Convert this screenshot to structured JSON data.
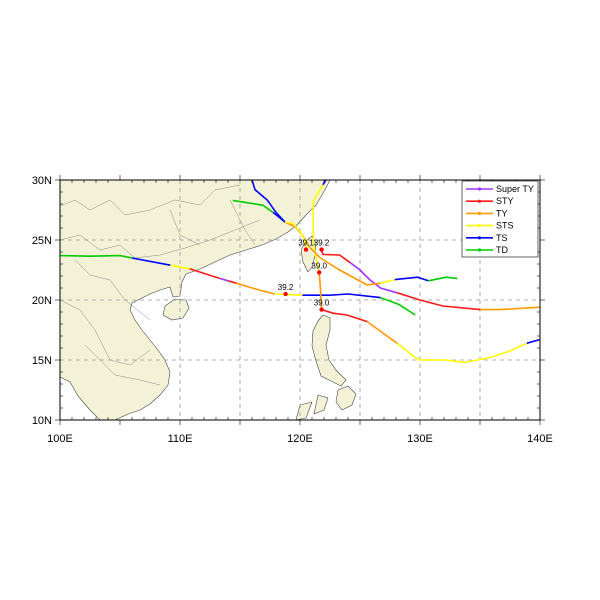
{
  "map": {
    "lon_range": [
      100,
      140
    ],
    "lat_range": [
      10,
      30
    ],
    "x_tick_labels": [
      {
        "lon": 100,
        "label": "100E"
      },
      {
        "lon": 110,
        "label": "110E"
      },
      {
        "lon": 120,
        "label": "120E"
      },
      {
        "lon": 130,
        "label": "130E"
      },
      {
        "lon": 140,
        "label": "140E"
      }
    ],
    "y_tick_labels": [
      {
        "lat": 10,
        "label": "10N"
      },
      {
        "lat": 15,
        "label": "15N"
      },
      {
        "lat": 20,
        "label": "20N"
      },
      {
        "lat": 25,
        "label": "25N"
      },
      {
        "lat": 30,
        "label": "30N"
      }
    ],
    "grid_lon": [
      110,
      115,
      120,
      125,
      130,
      135
    ],
    "grid_lat": [
      15,
      20,
      25
    ],
    "grid": true,
    "land_color": "#f4f2d6",
    "coast_color": "#555555",
    "legend_position": "top-right",
    "categories": [
      {
        "key": "SuperTY",
        "label": "Super TY",
        "color": "#a033ff"
      },
      {
        "key": "STY",
        "label": "STY",
        "color": "#ff1a1a"
      },
      {
        "key": "TY",
        "label": "TY",
        "color": "#ff9900"
      },
      {
        "key": "STS",
        "label": "STS",
        "color": "#ffff00"
      },
      {
        "key": "TS",
        "label": "TS",
        "color": "#0000ff"
      },
      {
        "key": "TD",
        "label": "TD",
        "color": "#00cc00"
      }
    ],
    "tracks": [
      {
        "segments": [
          {
            "cat": "TD",
            "pts": [
              [
                100,
                23.7
              ],
              [
                102.5,
                23.65
              ],
              [
                105,
                23.7
              ],
              [
                106,
                23.5
              ]
            ]
          },
          {
            "cat": "TS",
            "pts": [
              [
                106,
                23.5
              ],
              [
                109.2,
                22.9
              ]
            ]
          },
          {
            "cat": "STS",
            "pts": [
              [
                109.2,
                22.9
              ],
              [
                110.8,
                22.6
              ]
            ]
          },
          {
            "cat": "STY",
            "pts": [
              [
                110.8,
                22.6
              ],
              [
                113.3,
                21.8
              ]
            ]
          },
          {
            "cat": "SuperTY",
            "pts": [
              [
                113.3,
                21.8
              ],
              [
                114,
                21.6
              ]
            ]
          },
          {
            "cat": "STY",
            "pts": [
              [
                114,
                21.6
              ],
              [
                114.7,
                21.4
              ]
            ]
          },
          {
            "cat": "TY",
            "pts": [
              [
                114.7,
                21.4
              ],
              [
                116.7,
                20.8
              ],
              [
                117.9,
                20.5
              ]
            ]
          },
          {
            "cat": "STS",
            "pts": [
              [
                117.9,
                20.5
              ],
              [
                120.2,
                20.4
              ]
            ]
          },
          {
            "cat": "TS",
            "pts": [
              [
                120.2,
                20.4
              ],
              [
                122.5,
                20.4
              ],
              [
                124,
                20.5
              ],
              [
                126.7,
                20.2
              ]
            ]
          },
          {
            "cat": "TD",
            "pts": [
              [
                126.7,
                20.2
              ],
              [
                128.3,
                19.6
              ],
              [
                129.6,
                18.75
              ]
            ]
          }
        ]
      },
      {
        "segments": [
          {
            "cat": "TY",
            "pts": [
              [
                140,
                19.4
              ],
              [
                136.7,
                19.2
              ],
              [
                135,
                19.2
              ]
            ]
          },
          {
            "cat": "STY",
            "pts": [
              [
                135,
                19.2
              ],
              [
                131.9,
                19.5
              ],
              [
                130,
                20
              ],
              [
                128.1,
                20.6
              ]
            ]
          },
          {
            "cat": "SuperTY",
            "pts": [
              [
                128.1,
                20.6
              ],
              [
                126.7,
                21.0
              ],
              [
                125.8,
                21.7
              ],
              [
                125,
                22.5
              ],
              [
                124.2,
                23.1
              ]
            ]
          },
          {
            "cat": "STY",
            "pts": [
              [
                124.2,
                23.1
              ],
              [
                123.3,
                23.75
              ],
              [
                121.9,
                23.8
              ],
              [
                121.8,
                24.2
              ]
            ]
          }
        ]
      },
      {
        "segments": [
          {
            "cat": "TS",
            "pts": [
              [
                122.3,
                30.2
              ],
              [
                121.9,
                29.6
              ]
            ]
          },
          {
            "cat": "STS",
            "pts": [
              [
                121.9,
                29.6
              ],
              [
                121.1,
                28.2
              ],
              [
                121.1,
                25.4
              ],
              [
                121.2,
                24.2
              ],
              [
                121.6,
                22.3
              ]
            ]
          },
          {
            "cat": "TY",
            "pts": [
              [
                121.6,
                22.3
              ],
              [
                121.7,
                21.0
              ],
              [
                121.8,
                19.2
              ]
            ]
          }
        ]
      },
      {
        "segments": [
          {
            "cat": "STY",
            "pts": [
              [
                121.8,
                19.2
              ],
              [
                122.75,
                18.9
              ],
              [
                123.9,
                18.75
              ],
              [
                125.6,
                18.2
              ]
            ]
          },
          {
            "cat": "TY",
            "pts": [
              [
                125.6,
                18.2
              ],
              [
                126.9,
                17.25
              ],
              [
                128.1,
                16.4
              ]
            ]
          },
          {
            "cat": "STS",
            "pts": [
              [
                128.1,
                16.4
              ],
              [
                129.6,
                15.2
              ],
              [
                130,
                15
              ],
              [
                132.1,
                15
              ],
              [
                133.75,
                14.8
              ],
              [
                135.8,
                15.2
              ],
              [
                137.5,
                15.75
              ],
              [
                138.9,
                16.4
              ]
            ]
          },
          {
            "cat": "TS",
            "pts": [
              [
                138.9,
                16.4
              ],
              [
                140,
                16.7
              ]
            ]
          }
        ]
      },
      {
        "segments": [
          {
            "cat": "TS",
            "pts": [
              [
                116,
                30
              ],
              [
                116.25,
                29.2
              ],
              [
                117.3,
                28.3
              ],
              [
                118,
                27.3
              ],
              [
                118.75,
                26.5
              ]
            ]
          },
          {
            "cat": "TY",
            "pts": [
              [
                118.75,
                26.5
              ],
              [
                119.6,
                26.1
              ],
              [
                120.2,
                25.4
              ],
              [
                120.8,
                24.4
              ],
              [
                121.7,
                23.5
              ],
              [
                123.3,
                22.5
              ],
              [
                125.6,
                21.25
              ],
              [
                126.7,
                21.4
              ]
            ]
          },
          {
            "cat": "STS",
            "pts": [
              [
                126.7,
                21.4
              ],
              [
                127.9,
                21.7
              ]
            ]
          },
          {
            "cat": "TS",
            "pts": [
              [
                127.9,
                21.7
              ],
              [
                129.8,
                21.9
              ],
              [
                130.7,
                21.6
              ]
            ]
          },
          {
            "cat": "TD",
            "pts": [
              [
                130.7,
                21.6
              ],
              [
                132.2,
                21.9
              ],
              [
                133.1,
                21.8
              ]
            ]
          }
        ]
      },
      {
        "segments": [
          {
            "cat": "TD",
            "pts": [
              [
                114.4,
                28.3
              ],
              [
                116.9,
                27.9
              ],
              [
                117.75,
                27.3
              ]
            ]
          },
          {
            "cat": "TS",
            "pts": [
              [
                117.75,
                27.3
              ],
              [
                118.75,
                26.5
              ]
            ]
          },
          {
            "cat": "STS",
            "pts": [
              [
                118.75,
                26.5
              ],
              [
                119.4,
                26.4
              ],
              [
                120,
                25.7
              ],
              [
                120.4,
                25.0
              ],
              [
                120.5,
                24.2
              ]
            ]
          }
        ]
      }
    ],
    "markers": [
      {
        "lon": 118.8,
        "lat": 20.5,
        "label": "39.2"
      },
      {
        "lon": 120.5,
        "lat": 24.2,
        "label": "39.1"
      },
      {
        "lon": 121.8,
        "lat": 24.2,
        "label": "39.2"
      },
      {
        "lon": 121.6,
        "lat": 22.3,
        "label": "39.0"
      },
      {
        "lon": 121.8,
        "lat": 19.2,
        "label": "39.0"
      }
    ]
  }
}
